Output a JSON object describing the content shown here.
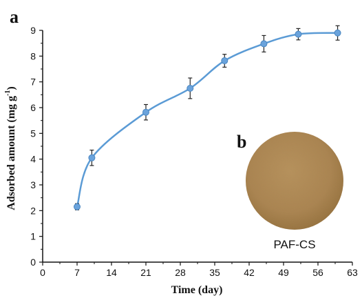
{
  "panel_a_label": "a",
  "panel_b_label": "b",
  "inset_caption": "PAF-CS",
  "colors": {
    "line": "#5b9bd5",
    "marker": "#6aa3dc",
    "axis": "#111111",
    "disc": "#b08a55"
  },
  "chart_data": {
    "type": "line",
    "xlabel": "Time (day)",
    "ylabel_main": "Adsorbed amount (mg g",
    "ylabel_sup": "-1",
    "ylabel_close": ")",
    "xlim": [
      0,
      63
    ],
    "ylim": [
      0,
      9
    ],
    "xticks": [
      0,
      7,
      14,
      21,
      28,
      35,
      42,
      49,
      56,
      63
    ],
    "yticks": [
      0,
      1,
      2,
      3,
      4,
      5,
      6,
      7,
      8,
      9
    ],
    "series": [
      {
        "x": [
          7,
          10,
          21,
          30,
          37,
          45,
          52,
          60
        ],
        "y": [
          2.15,
          4.05,
          5.82,
          6.75,
          7.82,
          8.48,
          8.85,
          8.9
        ],
        "yerr": [
          0.12,
          0.3,
          0.3,
          0.4,
          0.25,
          0.32,
          0.22,
          0.28
        ]
      }
    ]
  }
}
